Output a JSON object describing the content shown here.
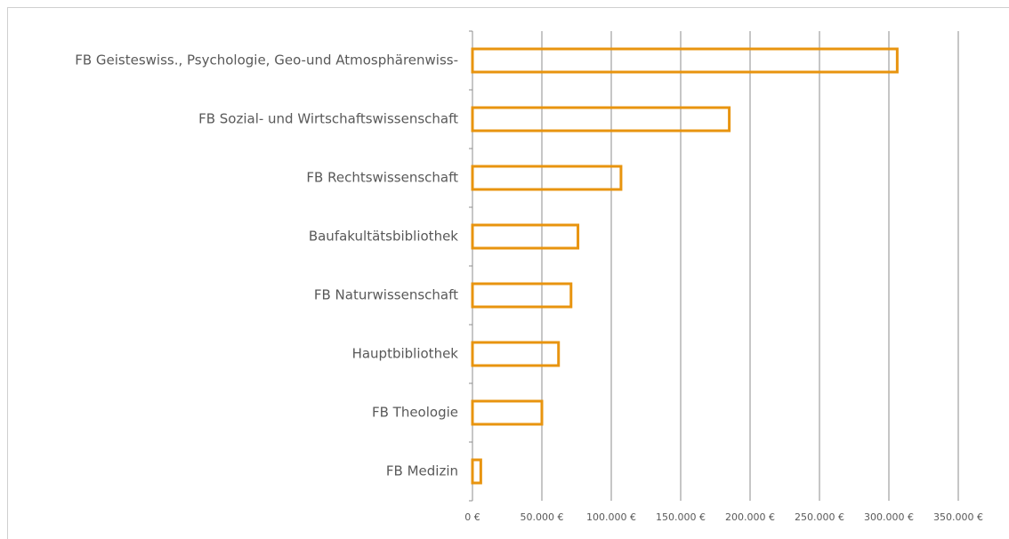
{
  "chart_data": {
    "type": "bar",
    "orientation": "horizontal",
    "categories": [
      "FB Geisteswiss., Psychologie, Geo-und Atmosphärenwiss-",
      "FB Sozial- und Wirtschaftswissenschaft",
      "FB Rechtswissenschaft",
      "Baufakultätsbibliothek",
      "FB Naturwissenschaft",
      "Hauptbibliothek",
      "FB Theologie",
      "FB Medizin"
    ],
    "values": [
      306000,
      185000,
      107000,
      76000,
      71000,
      62000,
      50000,
      6000
    ],
    "color": "#e8940f",
    "xlim": [
      0,
      350000
    ],
    "xticks": [
      {
        "value": 0,
        "label": "0 €"
      },
      {
        "value": 50000,
        "label": "50.000 €"
      },
      {
        "value": 100000,
        "label": "100.000 €"
      },
      {
        "value": 150000,
        "label": "150.000 €"
      },
      {
        "value": 200000,
        "label": "200.000 €"
      },
      {
        "value": 250000,
        "label": "250.000 €"
      },
      {
        "value": 300000,
        "label": "300.000 €"
      },
      {
        "value": 350000,
        "label": "350.000 €"
      }
    ],
    "grid": true
  }
}
